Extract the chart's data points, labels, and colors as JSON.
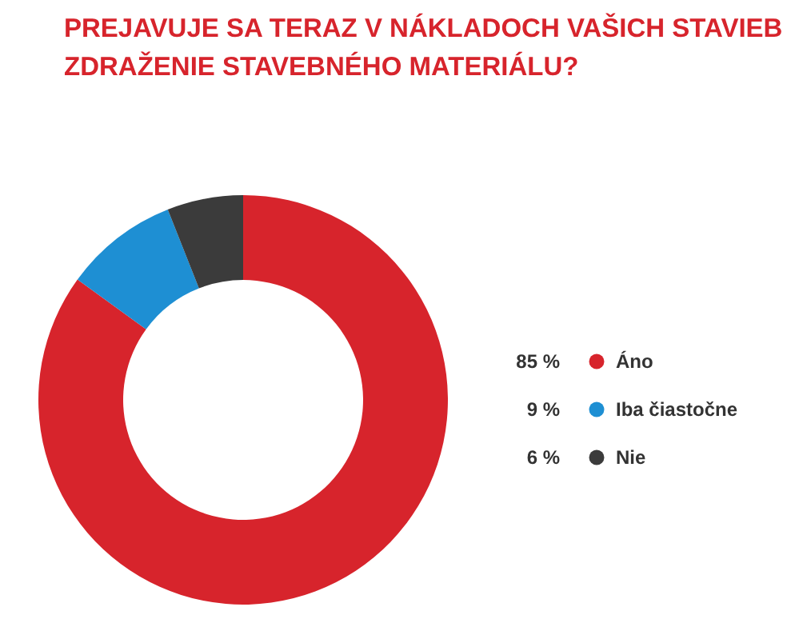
{
  "chart_data": {
    "type": "donut",
    "title": "PREJAVUJE SA TERAZ V NÁKLADOCH VAŠICH STAVIEB ZDRAŽENIE STAVEBNÉHO MATERIÁLU?",
    "categories": [
      "Áno",
      "Iba čiastočne",
      "Nie"
    ],
    "values": [
      85,
      9,
      6
    ],
    "value_labels": [
      "85 %",
      "9 %",
      "6 %"
    ],
    "colors": [
      "#d7242c",
      "#1e8fd3",
      "#3b3b3b"
    ],
    "legend": "right"
  }
}
